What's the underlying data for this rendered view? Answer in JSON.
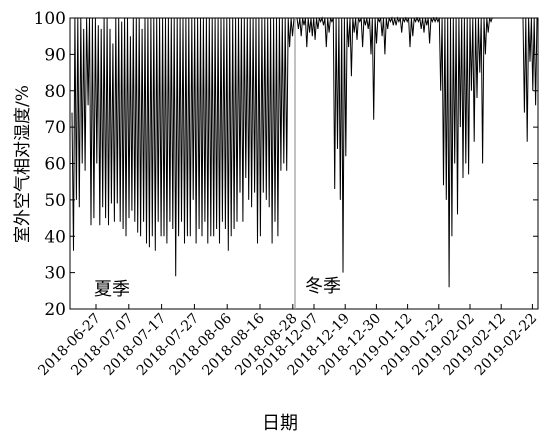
{
  "chart_data": {
    "type": "line",
    "title": "",
    "ylabel": "室外空气相对湿度/%",
    "xlabel": "日期",
    "ylim": [
      20,
      100
    ],
    "yticks": [
      20,
      30,
      40,
      50,
      60,
      70,
      80,
      90,
      100
    ],
    "grid": false,
    "legend": "none",
    "season_labels": [
      "夏季",
      "冬季"
    ],
    "periods": [
      {
        "name": "夏季",
        "ticks": [
          "2018-06-27",
          "2018-07-07",
          "2018-07-17",
          "2018-07-27",
          "2018-08-06",
          "2018-08-16",
          "2018-08-28"
        ],
        "daily_max": [
          74,
          100,
          100,
          100,
          97,
          100,
          100,
          100,
          100,
          98,
          97,
          100,
          100,
          97,
          93,
          100,
          100,
          99,
          100,
          100,
          95,
          100,
          100,
          100,
          97,
          100,
          100,
          100,
          100,
          100,
          100,
          100,
          100,
          100,
          100,
          100,
          100,
          100,
          100,
          100,
          100,
          100,
          100,
          100,
          100,
          100,
          100,
          100,
          100,
          100,
          100,
          100,
          100,
          100,
          100,
          100,
          100,
          100,
          100,
          100,
          100,
          100,
          100,
          100,
          100,
          100,
          100,
          100,
          100,
          100,
          100,
          100,
          100,
          100,
          100,
          100
        ],
        "daily_min": [
          36,
          50,
          48,
          60,
          58,
          76,
          43,
          45,
          60,
          43,
          48,
          45,
          43,
          49,
          44,
          49,
          44,
          42,
          40,
          45,
          47,
          44,
          41,
          40,
          44,
          38,
          37,
          40,
          36,
          44,
          40,
          40,
          38,
          44,
          42,
          29,
          40,
          44,
          38,
          40,
          40,
          50,
          38,
          42,
          40,
          44,
          38,
          40,
          40,
          42,
          38,
          44,
          42,
          36,
          40,
          42,
          44,
          52,
          44,
          56,
          50,
          48,
          52,
          38,
          40,
          52,
          50,
          48,
          38,
          44,
          40,
          58,
          60,
          58,
          92,
          95
        ]
      },
      {
        "name": "冬季",
        "ticks": [
          "2018-12-07",
          "2018-12-19",
          "2018-12-30",
          "2019-01-12",
          "2019-01-22",
          "2019-02-02",
          "2019-02-12",
          "2019-02-22"
        ],
        "daily_max": [
          100,
          100,
          100,
          100,
          100,
          100,
          100,
          100,
          100,
          100,
          100,
          100,
          100,
          100,
          100,
          100,
          100,
          100,
          100,
          100,
          100,
          100,
          100,
          100,
          100,
          100,
          100,
          100,
          100,
          100,
          100,
          100,
          100,
          100,
          100,
          100,
          100,
          100,
          100,
          100,
          100,
          100,
          100,
          100,
          100,
          100,
          100,
          100,
          100,
          100,
          100,
          100,
          100,
          100,
          100,
          100,
          100,
          100,
          100,
          100,
          100,
          100,
          100,
          100,
          100,
          100,
          100,
          100,
          100,
          100,
          100,
          100,
          100,
          100,
          100,
          100,
          100,
          100,
          100,
          100,
          100,
          100,
          100,
          100,
          100,
          100
        ],
        "daily_min": [
          97,
          95,
          98,
          92,
          96,
          95,
          94,
          97,
          99,
          98,
          92,
          96,
          99,
          53,
          64,
          50,
          30,
          62,
          92,
          84,
          96,
          94,
          99,
          92,
          98,
          97,
          90,
          72,
          93,
          99,
          95,
          90,
          97,
          99,
          98,
          98,
          99,
          96,
          99,
          99,
          92,
          95,
          99,
          99,
          97,
          96,
          98,
          93,
          99,
          99,
          99,
          80,
          54,
          50,
          26,
          40,
          60,
          46,
          70,
          56,
          60,
          57,
          80,
          66,
          78,
          85,
          60,
          90,
          96,
          99,
          100,
          100,
          100,
          100,
          100,
          100,
          100,
          100,
          100,
          100,
          100,
          74,
          66,
          88,
          80,
          76
        ]
      }
    ]
  }
}
